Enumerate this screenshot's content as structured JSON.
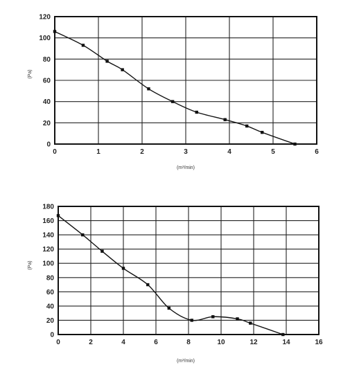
{
  "chart_data": [
    {
      "type": "line",
      "title": "",
      "xlabel": "(m³/min)",
      "ylabel": "(Pa)",
      "xlim": [
        0,
        6
      ],
      "ylim": [
        0,
        120
      ],
      "x_ticks": [
        "0",
        "1",
        "2",
        "3",
        "4",
        "5",
        "6"
      ],
      "y_ticks": [
        "0",
        "20",
        "40",
        "60",
        "80",
        "100",
        "120"
      ],
      "grid": true,
      "series": [
        {
          "x": [
            0,
            0.65,
            1.2,
            1.55,
            2.15,
            2.7,
            3.25,
            3.9,
            4.4,
            4.75,
            5.5
          ],
          "y": [
            106,
            93,
            78,
            70,
            52,
            40,
            30,
            23,
            17,
            11,
            0
          ]
        }
      ]
    },
    {
      "type": "line",
      "title": "",
      "xlabel": "(m³/min)",
      "ylabel": "(Pa)",
      "xlim": [
        0,
        16
      ],
      "ylim": [
        0,
        180
      ],
      "x_ticks": [
        "0",
        "2",
        "4",
        "6",
        "8",
        "10",
        "12",
        "14",
        "16"
      ],
      "y_ticks": [
        "0",
        "20",
        "40",
        "60",
        "80",
        "100",
        "120",
        "140",
        "160",
        "180"
      ],
      "grid": true,
      "series": [
        {
          "x": [
            0,
            1.5,
            2.7,
            4.0,
            5.5,
            6.8,
            8.2,
            9.5,
            11.0,
            11.8,
            13.8
          ],
          "y": [
            167,
            140,
            117,
            93,
            70,
            37,
            20,
            25,
            22,
            16,
            0
          ]
        }
      ]
    }
  ]
}
